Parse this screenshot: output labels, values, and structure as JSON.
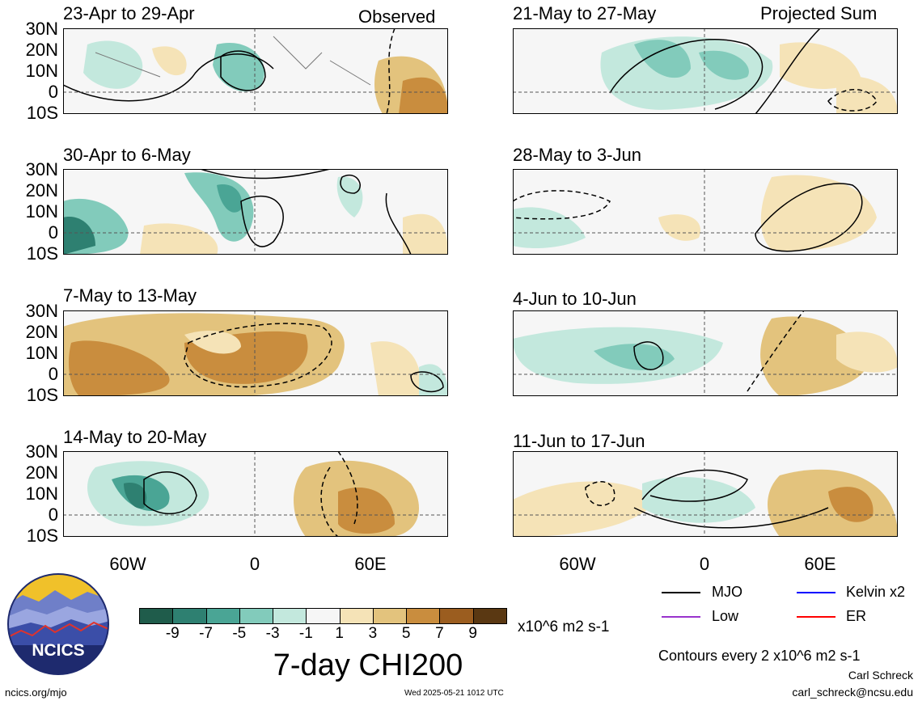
{
  "panels": {
    "left_header": "Observed",
    "right_header": "Projected Sum",
    "left": [
      "23-Apr to 29-Apr",
      "30-Apr to 6-May",
      "7-May to 13-May",
      "14-May to 20-May"
    ],
    "right": [
      "21-May to 27-May",
      "28-May to 3-Jun",
      "4-Jun to 10-Jun",
      "11-Jun to 17-Jun"
    ]
  },
  "axes": {
    "lat_labels": [
      "30N",
      "20N",
      "10N",
      "0",
      "10S"
    ],
    "lon_labels": [
      "60W",
      "0",
      "60E"
    ]
  },
  "colorbar": {
    "ticks": [
      "-9",
      "-7",
      "-5",
      "-3",
      "-1",
      "1",
      "3",
      "5",
      "7",
      "9"
    ],
    "colors": [
      "#1f5c4b",
      "#2e8071",
      "#4aa595",
      "#82cbbb",
      "#c3e8dd",
      "#f6f6f6",
      "#f5e3b7",
      "#e3c37d",
      "#c98d3e",
      "#9b5d1f",
      "#5a3812"
    ],
    "units": "x10^6 m2 s-1",
    "title": "7-day CHI200"
  },
  "legend": {
    "items": [
      {
        "label": "MJO",
        "color": "#000000"
      },
      {
        "label": "Kelvin x2",
        "color": "#0000ff"
      },
      {
        "label": "Low",
        "color": "#9933cc"
      },
      {
        "label": "ER",
        "color": "#ff0000"
      }
    ],
    "contour_note": "Contours every 2 x10^6 m2 s-1",
    "author": "Carl Schreck",
    "email": "carl_schreck@ncsu.edu"
  },
  "footer": {
    "url": "ncics.org/mjo",
    "timestamp": "Wed 2025-05-21 1012 UTC",
    "logo_text": "NCICS"
  }
}
